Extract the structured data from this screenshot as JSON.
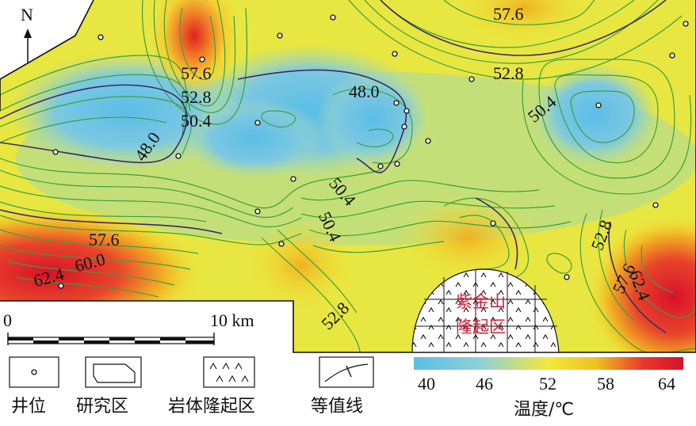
{
  "north": "N",
  "scale": {
    "zero": "0",
    "end": "10 km"
  },
  "uplift": {
    "line1": "紫金山",
    "line2": "隆起区"
  },
  "contour_labels": [
    "57.6",
    "52.8",
    "48.0",
    "50.4",
    "48.0",
    "50.4",
    "57.6",
    "52.8",
    "50.4",
    "57.6",
    "60.0",
    "62.4",
    "50.4",
    "52.8",
    "52.8",
    "52.8",
    "57.6",
    "62.4"
  ],
  "legend": {
    "items": [
      "井位",
      "研究区",
      "岩体隆起区",
      "等值线"
    ],
    "temp_title": "温度/℃",
    "ticks": [
      "40",
      "46",
      "52",
      "58",
      "64"
    ],
    "colorbar": [
      "#5bbde8",
      "#8fd0d8",
      "#f2e93a",
      "#f0c020",
      "#e83a2a",
      "#d8102a"
    ]
  },
  "colors": {
    "cold": "#5bbde8",
    "warm": "#f2e93a",
    "hot": "#e0202a",
    "contour": "#3aa040",
    "major_contour": "#3a2a6a"
  }
}
